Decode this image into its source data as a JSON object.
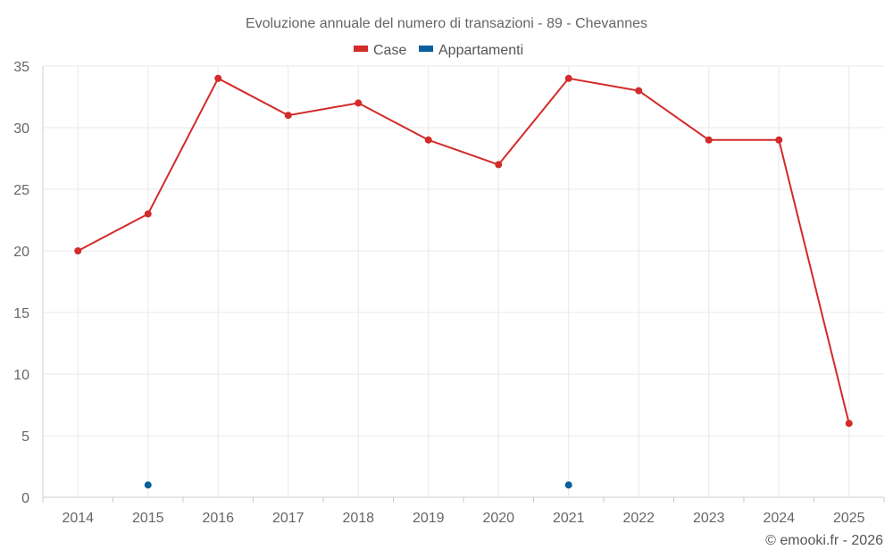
{
  "chart_data": {
    "type": "line",
    "title": "Evoluzione annuale del numero di transazioni - 89 - Chevannes",
    "categories": [
      "2014",
      "2015",
      "2016",
      "2017",
      "2018",
      "2019",
      "2020",
      "2021",
      "2022",
      "2023",
      "2024",
      "2025"
    ],
    "series": [
      {
        "name": "Case",
        "color": "#d32a2a",
        "values": [
          20,
          23,
          34,
          31,
          32,
          29,
          27,
          34,
          33,
          29,
          29,
          6
        ],
        "line": true
      },
      {
        "name": "Appartamenti",
        "color": "#0a5f9e",
        "values": [
          null,
          1,
          null,
          null,
          null,
          null,
          null,
          1,
          null,
          null,
          null,
          null
        ],
        "line": false
      }
    ],
    "xlabel": "",
    "ylabel": "",
    "ylim": [
      0,
      35
    ],
    "yticks": [
      0,
      5,
      10,
      15,
      20,
      25,
      30,
      35
    ],
    "grid": true,
    "legend": "top-center"
  },
  "credit": "© emooki.fr - 2026"
}
